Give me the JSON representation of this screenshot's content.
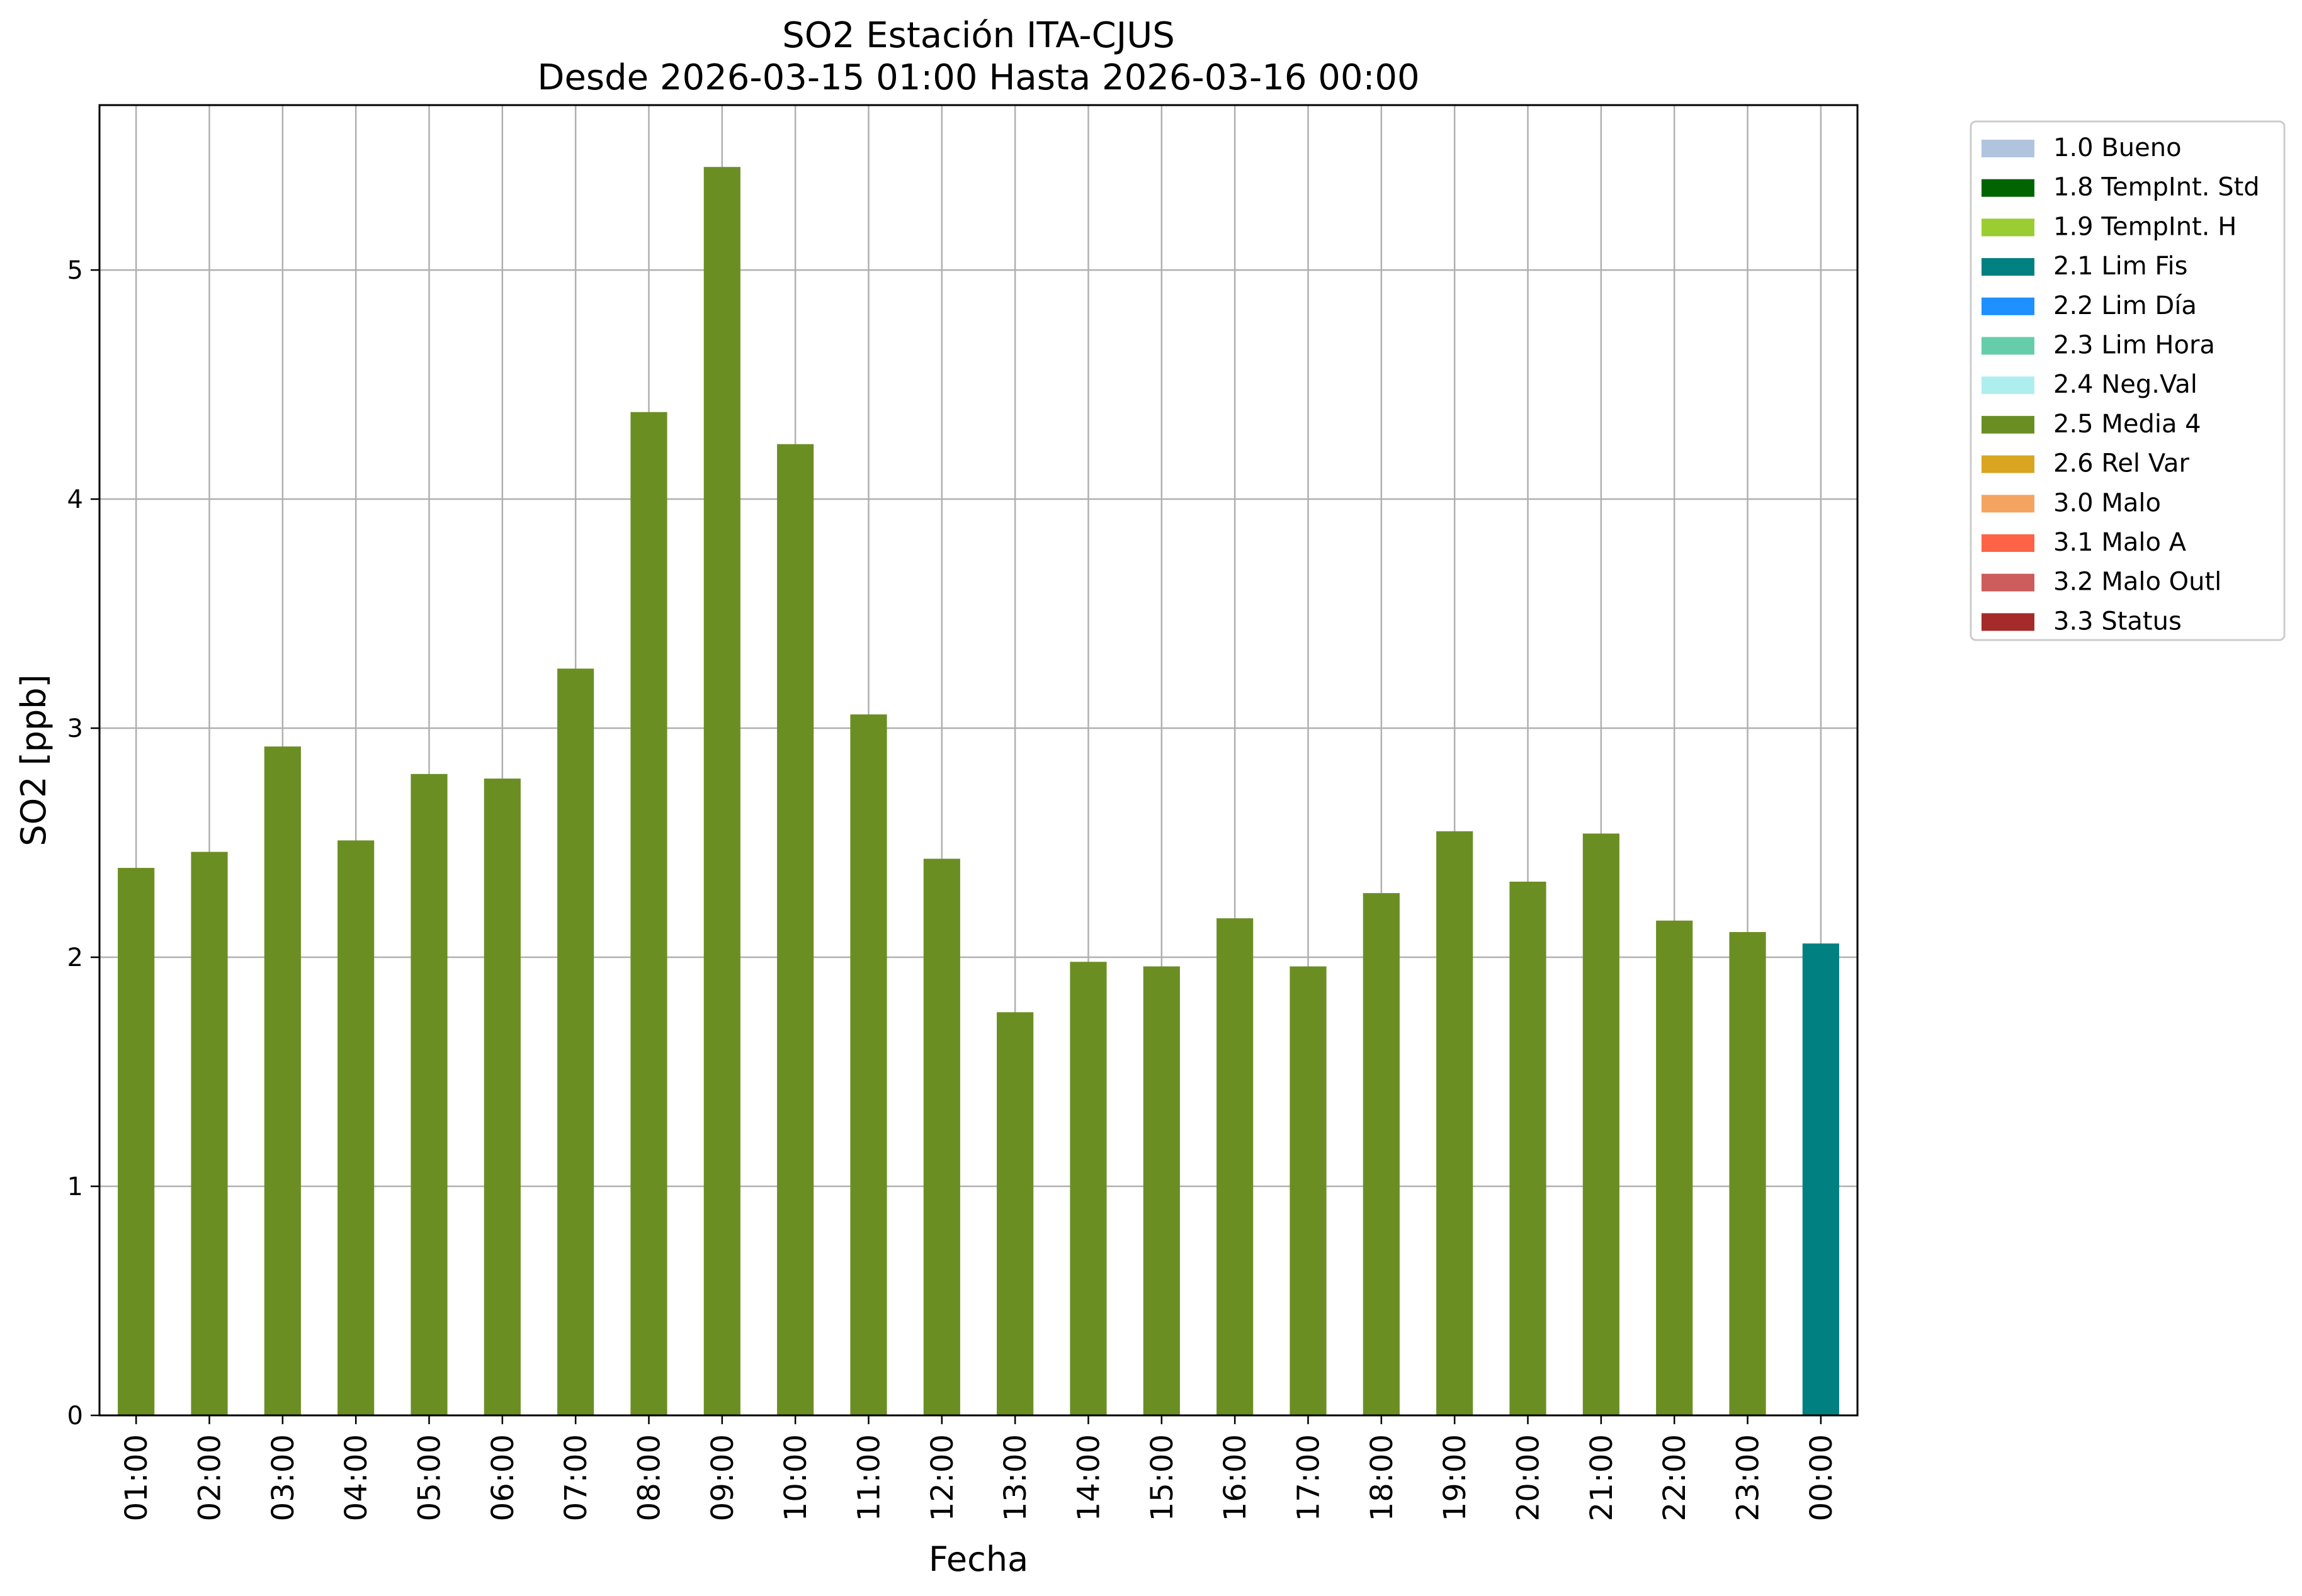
{
  "chart_data": {
    "type": "bar",
    "title": "SO2 Estación ITA-CJUS",
    "subtitle": "Desde 2026-03-15 01:00 Hasta 2026-03-16 00:00",
    "xlabel": "Fecha",
    "ylabel": "SO2 [ppb]",
    "ylim": [
      0,
      5.72
    ],
    "yticks": [
      0,
      1,
      2,
      3,
      4,
      5
    ],
    "grid": true,
    "legend_placement": "outside-top-right",
    "categories": [
      "01:00",
      "02:00",
      "03:00",
      "04:00",
      "05:00",
      "06:00",
      "07:00",
      "08:00",
      "09:00",
      "10:00",
      "11:00",
      "12:00",
      "13:00",
      "14:00",
      "15:00",
      "16:00",
      "17:00",
      "18:00",
      "19:00",
      "20:00",
      "21:00",
      "22:00",
      "23:00",
      "00:00"
    ],
    "values": [
      2.39,
      2.46,
      2.92,
      2.51,
      2.8,
      2.78,
      3.26,
      4.38,
      5.45,
      4.24,
      3.06,
      2.43,
      1.76,
      1.98,
      1.96,
      2.17,
      1.96,
      2.28,
      2.55,
      2.33,
      2.54,
      2.16,
      2.11,
      2.06
    ],
    "flags": [
      "2.5 Media 4",
      "2.5 Media 4",
      "2.5 Media 4",
      "2.5 Media 4",
      "2.5 Media 4",
      "2.5 Media 4",
      "2.5 Media 4",
      "2.5 Media 4",
      "2.5 Media 4",
      "2.5 Media 4",
      "2.5 Media 4",
      "2.5 Media 4",
      "2.5 Media 4",
      "2.5 Media 4",
      "2.5 Media 4",
      "2.5 Media 4",
      "2.5 Media 4",
      "2.5 Media 4",
      "2.5 Media 4",
      "2.5 Media 4",
      "2.5 Media 4",
      "2.5 Media 4",
      "2.5 Media 4",
      "2.1 Lim Fis"
    ],
    "legend": [
      {
        "label": "1.0 Bueno",
        "color": "#b0c4de"
      },
      {
        "label": "1.8 TempInt. Std",
        "color": "#006400"
      },
      {
        "label": "1.9 TempInt. H",
        "color": "#9acd32"
      },
      {
        "label": "2.1 Lim Fis",
        "color": "#008080"
      },
      {
        "label": "2.2 Lim Día",
        "color": "#1e90ff"
      },
      {
        "label": "2.3 Lim Hora",
        "color": "#66cdaa"
      },
      {
        "label": "2.4 Neg.Val",
        "color": "#afeeee"
      },
      {
        "label": "2.5 Media 4",
        "color": "#6b8e23"
      },
      {
        "label": "2.6 Rel Var",
        "color": "#daa520"
      },
      {
        "label": "3.0 Malo",
        "color": "#f4a460"
      },
      {
        "label": "3.1 Malo A",
        "color": "#ff6347"
      },
      {
        "label": "3.2 Malo Outl",
        "color": "#cd5c5c"
      },
      {
        "label": "3.3 Status",
        "color": "#a52a2a"
      }
    ]
  }
}
